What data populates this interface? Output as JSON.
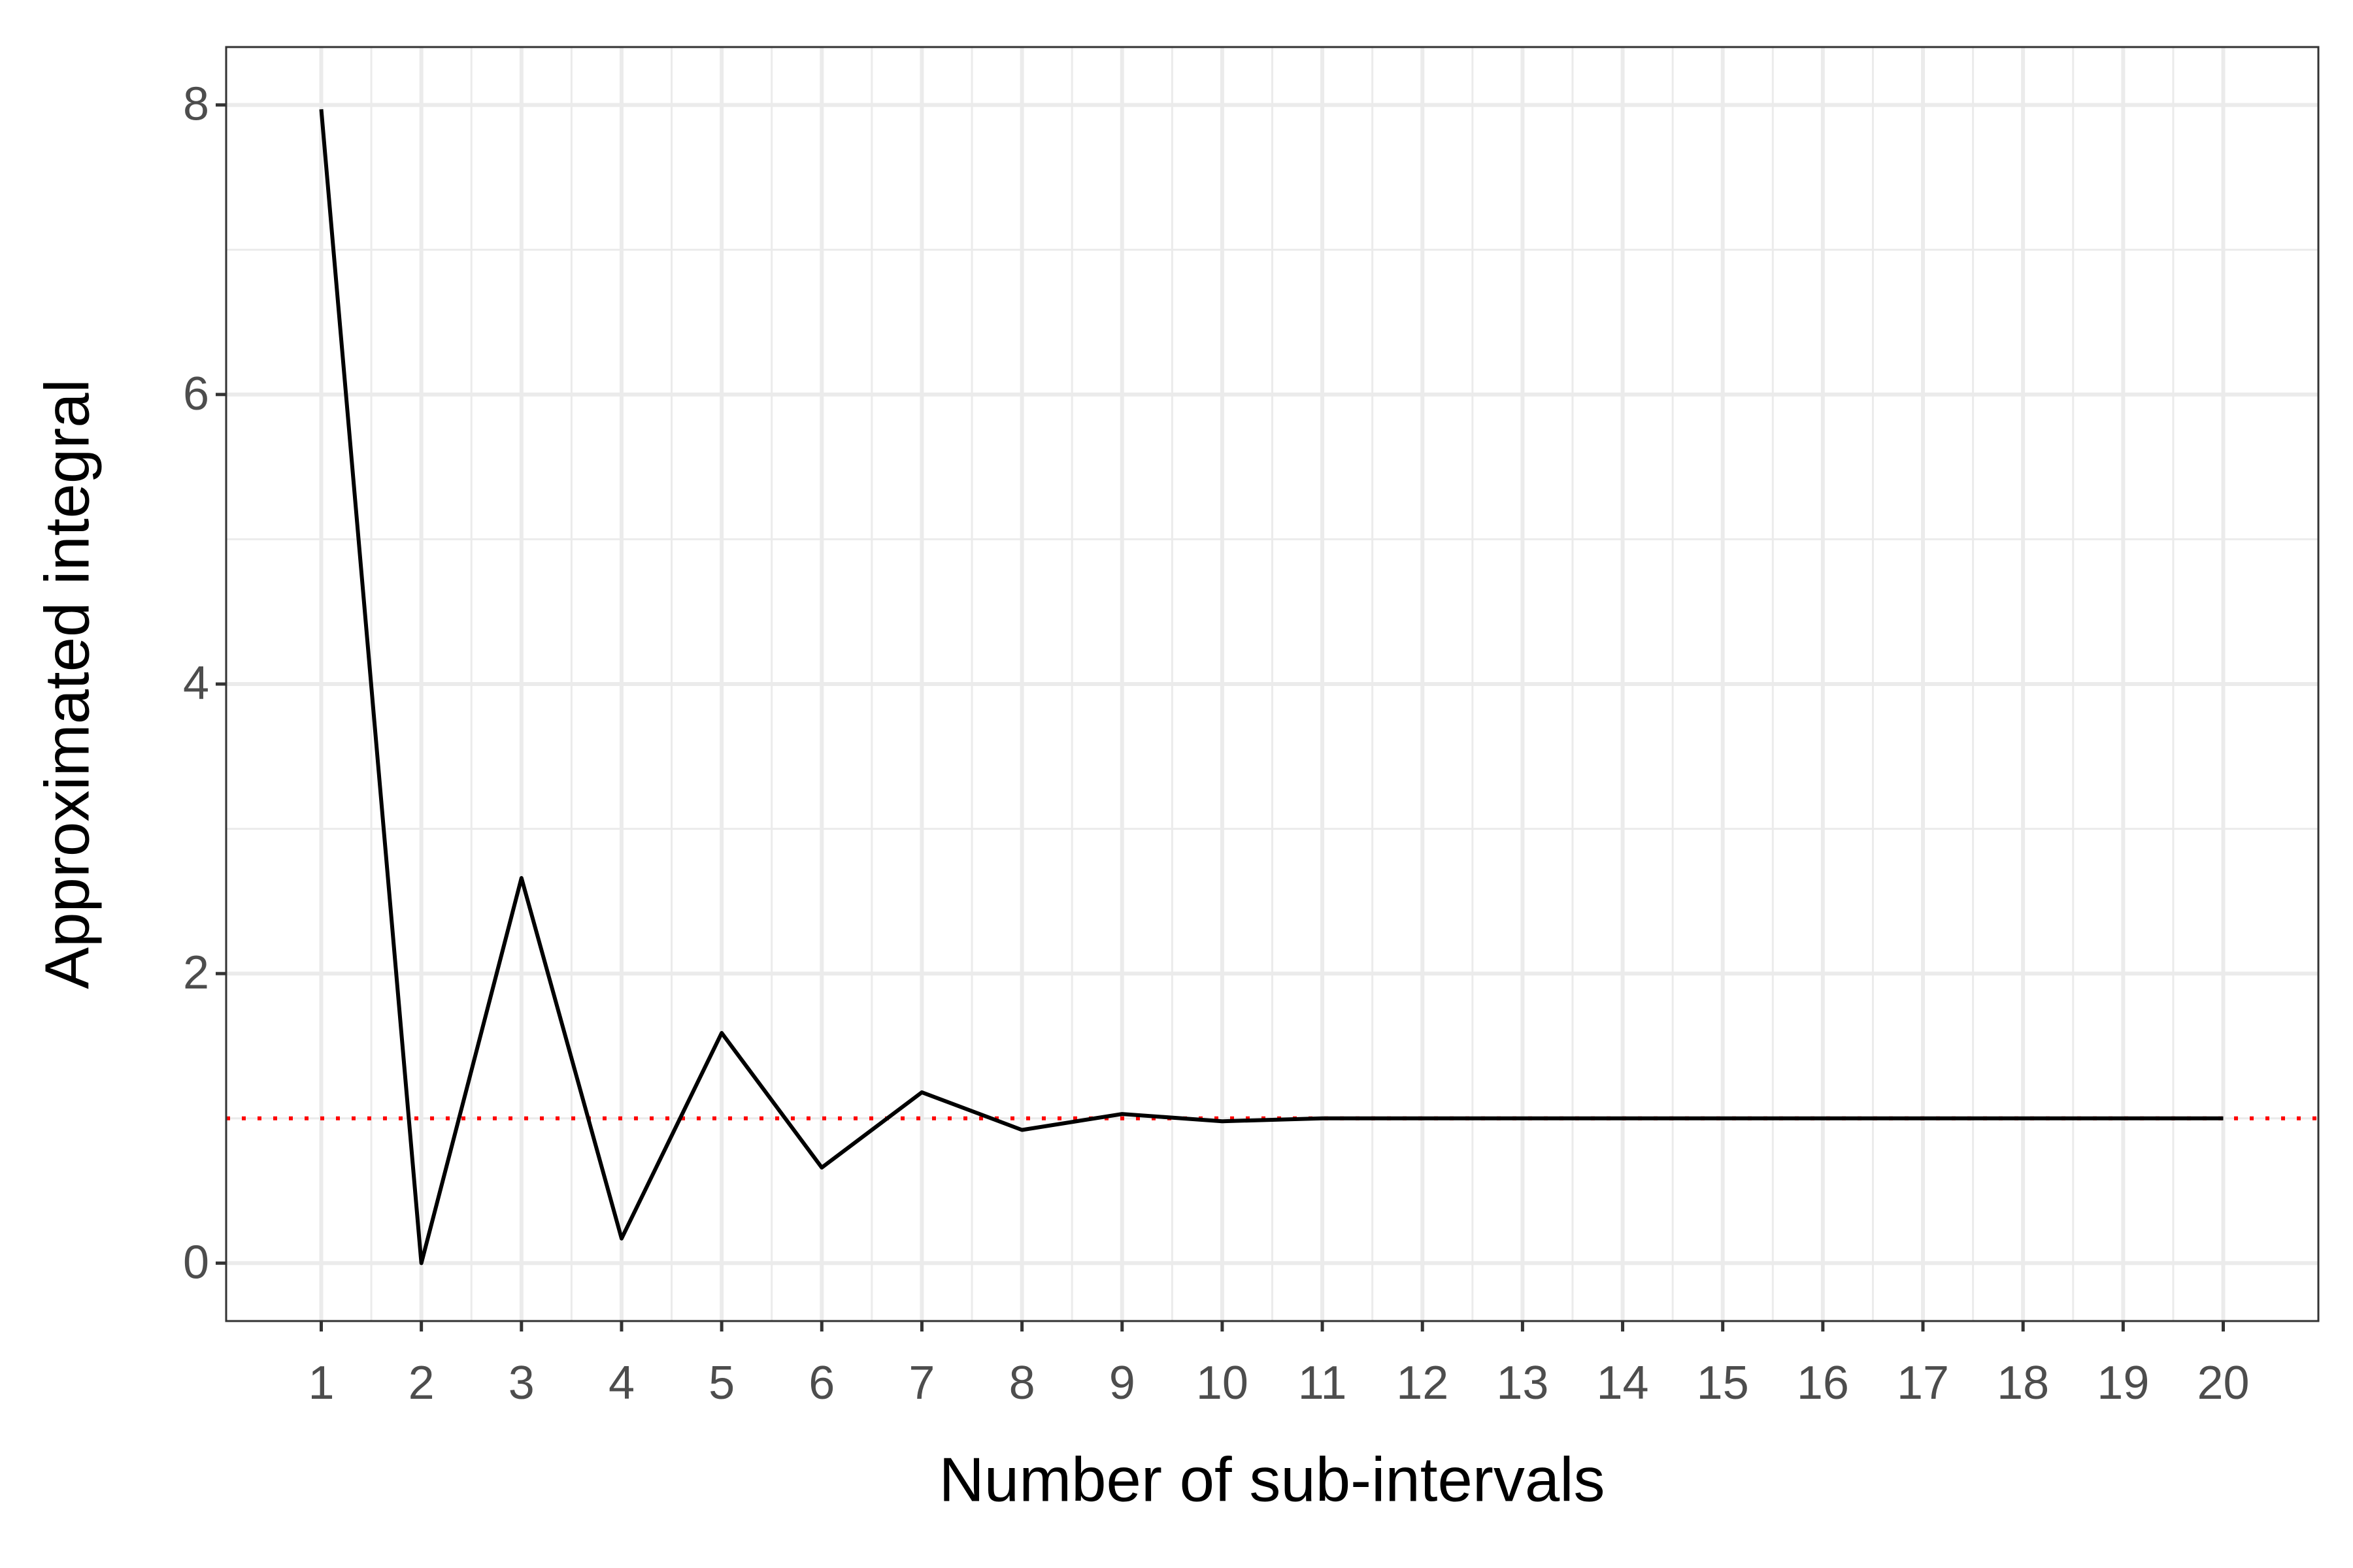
{
  "chart_data": {
    "type": "line",
    "x_label": "Number of sub-intervals",
    "y_label": "Approximated integral",
    "x": [
      1,
      2,
      3,
      4,
      5,
      6,
      7,
      8,
      9,
      10,
      11,
      12,
      13,
      14,
      15,
      16,
      17,
      18,
      19,
      20
    ],
    "series": [
      {
        "color": "#000000",
        "values": [
          7.97,
          0,
          2.66,
          0.17,
          1.59,
          0.66,
          1.18,
          0.92,
          1.03,
          0.98,
          1.0,
          1.0,
          1.0,
          1.0,
          1.0,
          1.0,
          1.0,
          1.0,
          1.0,
          1.0
        ]
      }
    ],
    "hline": {
      "value": 1,
      "color": "#ff0000",
      "style": "dotted"
    },
    "xlim": [
      0.05,
      20.95
    ],
    "xticks": [
      1,
      2,
      3,
      4,
      5,
      6,
      7,
      8,
      9,
      10,
      11,
      12,
      13,
      14,
      15,
      16,
      17,
      18,
      19,
      20
    ],
    "ylim": [
      -0.4,
      8.4
    ],
    "yticks": [
      0,
      2,
      4,
      6,
      8
    ],
    "grid": true
  }
}
